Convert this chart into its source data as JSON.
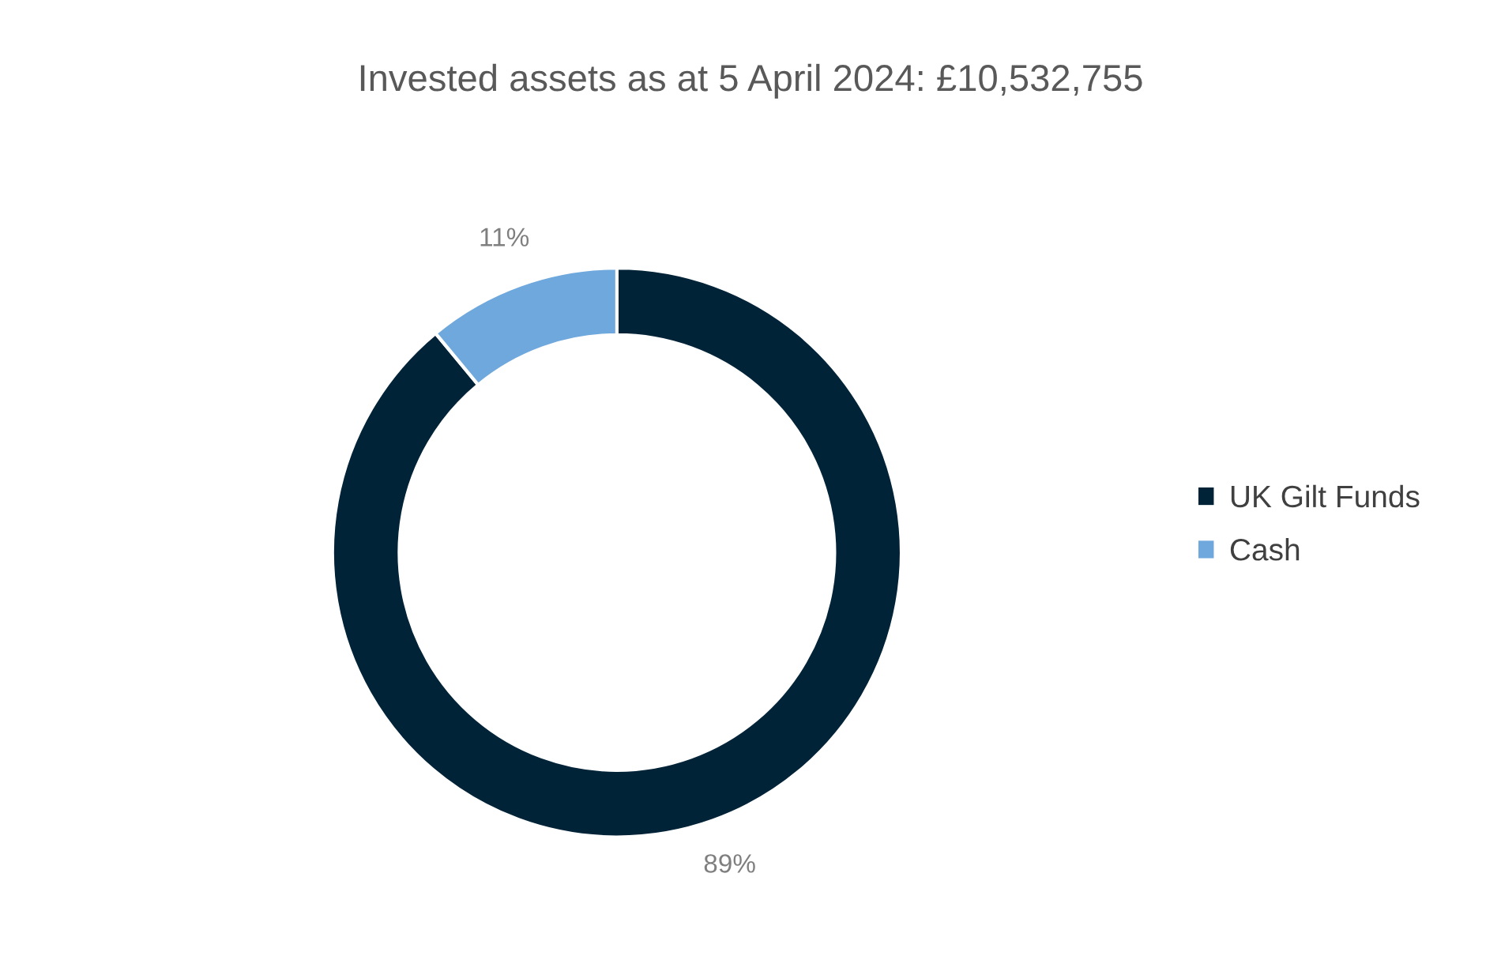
{
  "chart_data": {
    "type": "donut",
    "title": "Invested assets as at 5 April 2024: £10,532,755",
    "categories": [
      "UK Gilt Funds",
      "Cash"
    ],
    "values": [
      89,
      11
    ],
    "colors": [
      "#002338",
      "#6fa8dc"
    ],
    "value_labels": [
      "89%",
      "11%"
    ],
    "legend": "right"
  }
}
